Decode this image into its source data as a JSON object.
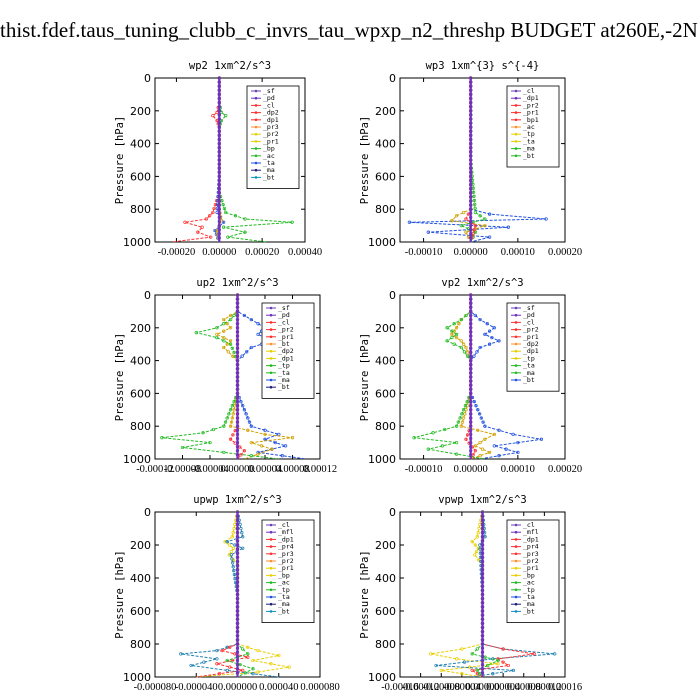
{
  "page": {
    "title": "thist.fdef.taus_tuning_clubb_c_invrs_tau_wpxp_n2_threshp  BUDGET at260E,-2N"
  },
  "chart_data": [
    {
      "type": "line",
      "title": "wp2   1xm^2/s^3",
      "ylabel": "Pressure [hPa]",
      "ylim": [
        1000,
        0
      ],
      "yticks": [
        "0",
        "200",
        "400",
        "600",
        "800",
        "1000"
      ],
      "xlim": [
        -0.0003,
        0.0004
      ],
      "xticks": [
        "-0.00020",
        "0.00000",
        "0.00020",
        "0.00040"
      ],
      "xtick_values": [
        -0.0002,
        0,
        0.0002,
        0.0004
      ],
      "legend": [
        "_sf",
        "_pd",
        "_cl",
        "_dp2",
        "_dp1",
        "_pr3",
        "_pr2",
        "_pr1",
        "_bp",
        "_ac",
        "_ta",
        "_ma",
        "_bt"
      ],
      "series": [
        {
          "name": "_cl",
          "color": "#ff3030",
          "y": [
            0,
            150,
            210,
            230,
            260,
            300,
            500,
            700,
            820,
            860,
            880,
            910,
            940,
            970,
            1000
          ],
          "values": [
            0,
            0,
            -1e-05,
            -3e-05,
            -1e-05,
            0,
            0,
            0,
            -3e-05,
            -6e-05,
            -0.00016,
            -8e-05,
            -0.0001,
            -4e-05,
            -0.00022
          ]
        },
        {
          "name": "_bp",
          "color": "#22bb22",
          "y": [
            0,
            150,
            210,
            230,
            260,
            300,
            500,
            700,
            820,
            860,
            880,
            910,
            940,
            970,
            1000
          ],
          "values": [
            0,
            0,
            1e-05,
            3e-05,
            1e-05,
            0,
            0,
            0,
            3e-05,
            0.00012,
            0.00034,
            2e-05,
            0.00012,
            4e-05,
            0.00022
          ]
        },
        {
          "name": "_ta",
          "color": "#2050dd",
          "y": [
            0,
            300,
            600,
            820,
            880,
            930,
            1000
          ],
          "values": [
            0,
            0,
            0,
            -1e-05,
            2e-05,
            -2e-05,
            0
          ]
        },
        {
          "name": "_pr1",
          "color": "#d0a000",
          "y": [
            0,
            400,
            800,
            870,
            930,
            1000
          ],
          "values": [
            0,
            0,
            0,
            1e-05,
            -1e-05,
            0
          ]
        },
        {
          "name": "_bt",
          "color": "#7030c0",
          "y": [
            0,
            1000
          ],
          "values": [
            0,
            0
          ]
        }
      ]
    },
    {
      "type": "line",
      "title": "wp3   1xm^{3} s^{-4}",
      "ylabel": "Pressure [hPa]",
      "ylim": [
        1000,
        0
      ],
      "yticks": [
        "0",
        "200",
        "400",
        "600",
        "800",
        "1000"
      ],
      "xlim": [
        -0.00015,
        0.0002
      ],
      "xticks": [
        "-0.00010",
        "0.00000",
        "0.00010",
        "0.00020"
      ],
      "xtick_values": [
        -0.0001,
        0,
        0.0001,
        0.0002
      ],
      "legend": [
        "_cl",
        "_dp1",
        "_pr2",
        "_pr1",
        "_bp1",
        "_ac",
        "_tp",
        "_ta",
        "_ma",
        "_bt"
      ],
      "series": [
        {
          "name": "_tp",
          "color": "#2050dd",
          "y": [
            0,
            500,
            800,
            830,
            860,
            880,
            910,
            940,
            970,
            1000
          ],
          "values": [
            0,
            0,
            0,
            4e-05,
            0.00016,
            -0.00013,
            8e-05,
            -9e-05,
            4e-05,
            0
          ]
        },
        {
          "name": "_pr1",
          "color": "#d0a000",
          "y": [
            0,
            500,
            800,
            840,
            870,
            900,
            940,
            1000
          ],
          "values": [
            0,
            0,
            0,
            -3e-05,
            -4e-05,
            3e-05,
            -1e-05,
            0
          ]
        },
        {
          "name": "_ac",
          "color": "#22bb22",
          "y": [
            0,
            500,
            820,
            860,
            900,
            940,
            1000
          ],
          "values": [
            0,
            0,
            1e-05,
            3e-05,
            -2e-05,
            1e-05,
            0
          ]
        },
        {
          "name": "_cl",
          "color": "#ff3030",
          "y": [
            0,
            800,
            860,
            900,
            1000
          ],
          "values": [
            0,
            0,
            -1e-05,
            1e-05,
            0
          ]
        },
        {
          "name": "_bt",
          "color": "#7030c0",
          "y": [
            0,
            1000
          ],
          "values": [
            0,
            0
          ]
        }
      ]
    },
    {
      "type": "line",
      "title": "up2   1xm^2/s^3",
      "ylabel": "Pressure [hPa]",
      "ylim": [
        1000,
        0
      ],
      "yticks": [
        "0",
        "200",
        "400",
        "600",
        "800",
        "1000"
      ],
      "xlim": [
        -0.00012,
        0.00012
      ],
      "xticks": [
        "-0.00012",
        "-0.00008",
        "-0.00004",
        "0.00000",
        "0.00004",
        "0.00008",
        "0.00012"
      ],
      "xtick_values": [
        -0.00012,
        -8e-05,
        -4e-05,
        0,
        4e-05,
        8e-05,
        0.00012
      ],
      "legend": [
        "_sf",
        "_pd",
        "_cl",
        "_pr2",
        "_pr1",
        "_bt",
        "_dp2",
        "_dp1",
        "_tp",
        "_ta",
        "_ma",
        "_bt"
      ],
      "series": [
        {
          "name": "_tp",
          "color": "#2050dd",
          "y": [
            0,
            100,
            150,
            200,
            240,
            280,
            320,
            400,
            600,
            800,
            850,
            880,
            920,
            960,
            1000
          ],
          "values": [
            0,
            0,
            2e-05,
            4e-05,
            3e-05,
            5e-05,
            2e-05,
            0,
            0,
            2e-05,
            6e-05,
            4e-05,
            7e-05,
            3e-05,
            0.0001
          ]
        },
        {
          "name": "_pr1",
          "color": "#d0a000",
          "y": [
            0,
            100,
            150,
            200,
            240,
            280,
            320,
            400,
            600,
            800,
            850,
            870,
            900,
            940,
            1000
          ],
          "values": [
            0,
            0,
            -2e-05,
            -1e-05,
            -3e-05,
            -1e-05,
            -2e-05,
            0,
            0,
            -1e-05,
            4e-05,
            8e-05,
            2e-05,
            5e-05,
            1e-05
          ]
        },
        {
          "name": "_dp1",
          "color": "#22bb22",
          "y": [
            0,
            100,
            150,
            200,
            230,
            260,
            300,
            400,
            600,
            800,
            840,
            870,
            900,
            930,
            960,
            1000
          ],
          "values": [
            0,
            0,
            -1e-05,
            -3e-05,
            -6e-05,
            -3e-05,
            -1e-05,
            0,
            0,
            -2e-05,
            -5e-05,
            -0.00011,
            -4e-05,
            -8e-05,
            -2e-05,
            6e-05
          ]
        },
        {
          "name": "_cl",
          "color": "#ff3030",
          "y": [
            0,
            800,
            880,
            950,
            1000
          ],
          "values": [
            0,
            0,
            -1e-05,
            1e-05,
            0
          ]
        },
        {
          "name": "_bt",
          "color": "#7030c0",
          "y": [
            0,
            1000
          ],
          "values": [
            0,
            0
          ]
        }
      ]
    },
    {
      "type": "line",
      "title": "vp2   1xm^2/s^3",
      "ylabel": "Pressure [hPa]",
      "ylim": [
        1000,
        0
      ],
      "yticks": [
        "0",
        "200",
        "400",
        "600",
        "800",
        "1000"
      ],
      "xlim": [
        -0.00015,
        0.0002
      ],
      "xticks": [
        "-0.00010",
        "0.00000",
        "0.00010",
        "0.00020"
      ],
      "xtick_values": [
        -0.0001,
        0,
        0.0001,
        0.0002
      ],
      "legend": [
        "_sf",
        "_pd",
        "_cl",
        "_pr2",
        "_pr1",
        "_dp2",
        "_dp1",
        "_tp",
        "_ta",
        "_ma",
        "_bt"
      ],
      "series": [
        {
          "name": "_tp",
          "color": "#2050dd",
          "y": [
            0,
            100,
            150,
            200,
            240,
            280,
            320,
            400,
            600,
            800,
            850,
            880,
            920,
            960,
            1000
          ],
          "values": [
            0,
            0,
            2e-05,
            5e-05,
            3e-05,
            6e-05,
            2e-05,
            0,
            0,
            3e-05,
            9e-05,
            0.00015,
            5e-05,
            0.0001,
            2e-05
          ]
        },
        {
          "name": "_pr1",
          "color": "#d0a000",
          "y": [
            0,
            100,
            150,
            200,
            240,
            280,
            320,
            400,
            600,
            800,
            850,
            880,
            920,
            960,
            1000
          ],
          "values": [
            0,
            0,
            -2e-05,
            -3e-05,
            -4e-05,
            -2e-05,
            -1e-05,
            0,
            0,
            -2e-05,
            5e-05,
            3e-05,
            1e-05,
            4e-05,
            0
          ]
        },
        {
          "name": "_dp1",
          "color": "#22bb22",
          "y": [
            0,
            100,
            150,
            200,
            240,
            280,
            320,
            400,
            600,
            800,
            840,
            870,
            900,
            940,
            1000
          ],
          "values": [
            0,
            0,
            -2e-05,
            -5e-05,
            -3e-05,
            -5e-05,
            -2e-05,
            0,
            0,
            -3e-05,
            -8e-05,
            -0.00012,
            -3e-05,
            -9e-05,
            3e-05
          ]
        },
        {
          "name": "_cl",
          "color": "#ff3030",
          "y": [
            0,
            800,
            880,
            950,
            1000
          ],
          "values": [
            0,
            0,
            -1e-05,
            1e-05,
            0
          ]
        },
        {
          "name": "_bt",
          "color": "#7030c0",
          "y": [
            0,
            1000
          ],
          "values": [
            0,
            0
          ]
        }
      ]
    },
    {
      "type": "line",
      "title": "upwp   1xm^2/s^3",
      "ylabel": "Pressure [hPa]",
      "ylim": [
        1000,
        0
      ],
      "yticks": [
        "0",
        "200",
        "400",
        "600",
        "800",
        "1000"
      ],
      "xlim": [
        -8e-05,
        8e-05
      ],
      "xticks": [
        "-0.000080",
        "-0.000040",
        "0.000000",
        "0.000040",
        "0.000080"
      ],
      "xtick_values": [
        -8e-05,
        -4e-05,
        0,
        4e-05,
        8e-05
      ],
      "legend": [
        "_cl",
        "_mfl",
        "_dp1",
        "_pr4",
        "_pr3",
        "_pr2",
        "_pr1",
        "_bp",
        "_ac",
        "_tp",
        "_ta",
        "_ma",
        "_bt"
      ],
      "series": [
        {
          "name": "_pr1",
          "color": "#e8d000",
          "y": [
            0,
            150,
            180,
            220,
            260,
            320,
            500,
            800,
            840,
            870,
            900,
            940,
            970,
            1000
          ],
          "values": [
            0,
            -5e-06,
            -1.2e-05,
            -4e-06,
            -8e-06,
            0,
            0,
            0,
            2e-05,
            4e-05,
            1.5e-05,
            5e-05,
            2e-05,
            -4e-05
          ]
        },
        {
          "name": "_tp",
          "color": "#2080b0",
          "y": [
            0,
            150,
            180,
            220,
            260,
            500,
            800,
            840,
            860,
            890,
            930,
            960,
            1000
          ],
          "values": [
            0,
            5e-06,
            -1e-05,
            5e-06,
            -6e-06,
            0,
            0,
            -2e-05,
            -5.5e-05,
            -2e-05,
            -4.5e-05,
            -1e-05,
            4e-05
          ]
        },
        {
          "name": "_cl",
          "color": "#ff3030",
          "y": [
            0,
            800,
            840,
            880,
            920,
            960,
            1000
          ],
          "values": [
            0,
            0,
            -1.5e-05,
            1e-05,
            -2e-05,
            5e-06,
            -4e-05
          ]
        },
        {
          "name": "_ac",
          "color": "#22bb22",
          "y": [
            0,
            800,
            860,
            900,
            950,
            1000
          ],
          "values": [
            0,
            0,
            1e-05,
            -1e-05,
            1.5e-05,
            0
          ]
        },
        {
          "name": "_bt",
          "color": "#7030c0",
          "y": [
            0,
            1000
          ],
          "values": [
            0,
            0
          ]
        }
      ]
    },
    {
      "type": "line",
      "title": "vpwp   1xm^2/s^3",
      "ylabel": "Pressure [hPa]",
      "ylim": [
        1000,
        0
      ],
      "yticks": [
        "0",
        "200",
        "400",
        "600",
        "800",
        "1000"
      ],
      "xlim": [
        -0.00016,
        0.00016
      ],
      "xticks": [
        "-0.00016",
        "-0.00012",
        "-0.00008",
        "-0.00004",
        "0.00000",
        "0.00004",
        "0.00008",
        "0.00012",
        "0.00016"
      ],
      "xtick_values": [
        -0.00016,
        -0.00012,
        -8e-05,
        -4e-05,
        0,
        4e-05,
        8e-05,
        0.00012,
        0.00016
      ],
      "legend": [
        "_cl",
        "_mfl",
        "_dp1",
        "_pr4",
        "_pr3",
        "_pr2",
        "_pr1",
        "_bp",
        "_ac",
        "_tp",
        "_ta",
        "_ma",
        "_bt"
      ],
      "series": [
        {
          "name": "_pr1",
          "color": "#e8d000",
          "y": [
            0,
            150,
            180,
            220,
            260,
            320,
            500,
            800,
            830,
            860,
            890,
            920,
            960,
            1000
          ],
          "values": [
            0,
            -1e-05,
            -2e-05,
            -8e-06,
            -1.5e-05,
            0,
            0,
            0,
            -4e-05,
            -0.0001,
            -5e-05,
            3e-05,
            -8e-05,
            0
          ]
        },
        {
          "name": "_tp",
          "color": "#2080b0",
          "y": [
            0,
            150,
            200,
            500,
            800,
            830,
            860,
            890,
            930,
            960,
            1000
          ],
          "values": [
            0,
            5e-06,
            -5e-06,
            0,
            0,
            4e-05,
            0.00014,
            2e-05,
            -9e-05,
            6e-05,
            -2e-05
          ]
        },
        {
          "name": "_cl",
          "color": "#ff3030",
          "y": [
            0,
            800,
            830,
            860,
            890,
            930,
            960,
            1000
          ],
          "values": [
            0,
            0,
            4e-05,
            0.0001,
            3e-05,
            5e-05,
            -2e-05,
            0
          ]
        },
        {
          "name": "_ac",
          "color": "#22bb22",
          "y": [
            0,
            800,
            860,
            900,
            960,
            1000
          ],
          "values": [
            0,
            0,
            -2e-05,
            3e-05,
            -1e-05,
            0
          ]
        },
        {
          "name": "_bt",
          "color": "#7030c0",
          "y": [
            0,
            1000
          ],
          "values": [
            0,
            0
          ]
        }
      ]
    }
  ]
}
